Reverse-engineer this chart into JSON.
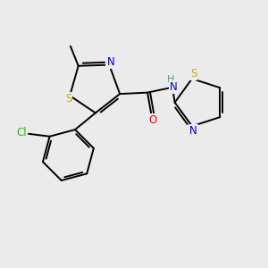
{
  "background_color": "#ebebeb",
  "atom_colors": {
    "C": "#000000",
    "N": "#0000cc",
    "S": "#ccaa00",
    "O": "#ff0000",
    "Cl": "#22bb00",
    "H": "#4a9a8a"
  },
  "bond_color": "#000000",
  "font_size_atom": 8.5,
  "fig_size": [
    3.0,
    3.0
  ],
  "dpi": 100
}
